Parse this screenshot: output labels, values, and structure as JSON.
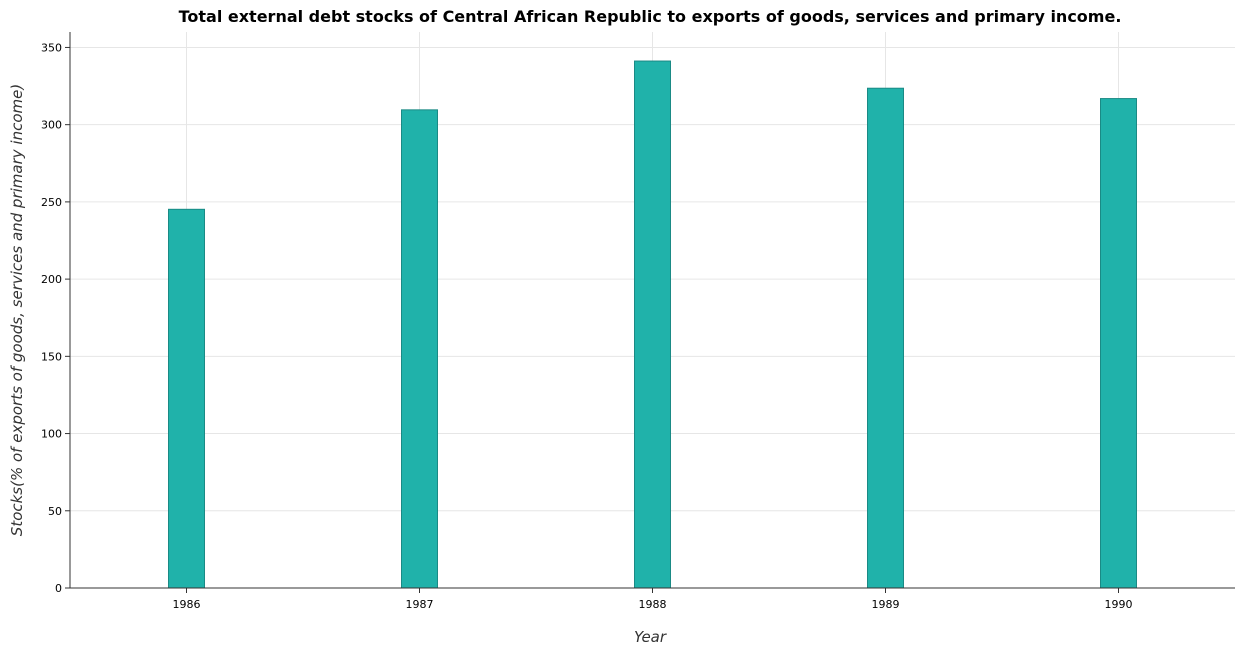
{
  "chart_data": {
    "type": "bar",
    "title": "Total external debt stocks of Central African Republic to exports of goods, services and primary income.",
    "xlabel": "Year",
    "ylabel": "Stocks(% of exports of goods, services and primary income)",
    "categories": [
      "1986",
      "1987",
      "1988",
      "1989",
      "1990"
    ],
    "values": [
      245.2,
      309.6,
      341.2,
      323.6,
      316.9
    ],
    "ylim": [
      0,
      360
    ],
    "yticks": [
      0,
      50,
      100,
      150,
      200,
      250,
      300,
      350
    ],
    "grid": true,
    "bar_color": "#20b2aa"
  }
}
